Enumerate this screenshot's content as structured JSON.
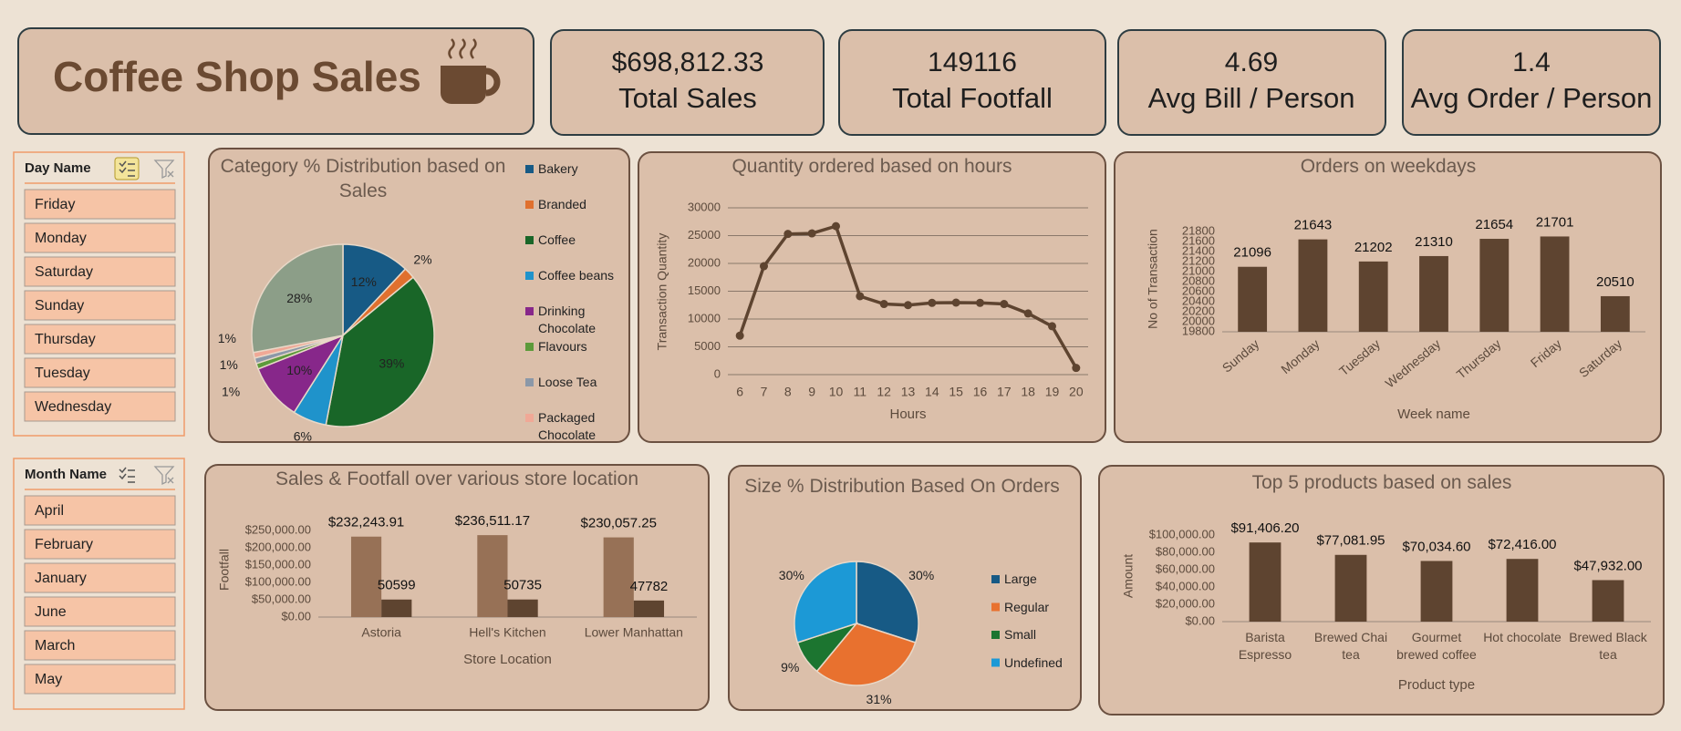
{
  "title": "Coffee Shop Sales",
  "kpis": [
    {
      "value": "$698,812.33",
      "label": "Total Sales"
    },
    {
      "value": "149116",
      "label": "Total Footfall"
    },
    {
      "value": "4.69",
      "label": "Avg Bill / Person"
    },
    {
      "value": "1.4",
      "label": "Avg Order / Person"
    }
  ],
  "slicers": [
    {
      "title": "Day Name",
      "items": [
        "Friday",
        "Monday",
        "Saturday",
        "Sunday",
        "Thursday",
        "Tuesday",
        "Wednesday"
      ]
    },
    {
      "title": "Month Name",
      "items": [
        "April",
        "February",
        "January",
        "June",
        "March",
        "May"
      ]
    }
  ],
  "chart_data": [
    {
      "type": "pie",
      "title": "Category % Distribution based on Sales",
      "categories": [
        "Bakery",
        "Branded",
        "Coffee",
        "Coffee beans",
        "Drinking Chocolate",
        "Flavours",
        "Loose Tea",
        "Packaged Chocolate",
        null
      ],
      "values": [
        12,
        2,
        39,
        6,
        10,
        1,
        1,
        1,
        28
      ],
      "value_labels": [
        "12%",
        "2%",
        "39%",
        "6%",
        "10%",
        "1%",
        "1%",
        "1%",
        "28%"
      ],
      "colors": [
        "#175a85",
        "#e0702e",
        "#196628",
        "#1f93cb",
        "#87278a",
        "#5c9a3a",
        "#8b98a8",
        "#f0a896",
        "#8c9e88"
      ]
    },
    {
      "type": "line",
      "title": "Quantity ordered based on hours",
      "x": [
        6,
        7,
        8,
        9,
        10,
        11,
        12,
        13,
        14,
        15,
        16,
        17,
        18,
        19,
        20
      ],
      "values": [
        7000,
        19500,
        25300,
        25400,
        26700,
        14100,
        12700,
        12500,
        12900,
        12950,
        12900,
        12700,
        11000,
        8700,
        1200
      ],
      "xlim": [
        5.5,
        20.5
      ],
      "xticks": [
        6,
        7,
        8,
        9,
        10,
        11,
        12,
        13,
        14,
        15,
        16,
        17,
        18,
        19,
        20
      ],
      "ylim": [
        0,
        30000
      ],
      "yticks": [
        0,
        5000,
        10000,
        15000,
        20000,
        25000,
        30000
      ],
      "grid": true,
      "xlabel": "Hours",
      "ylabel": "Transaction Quantity",
      "color": "#5e4430"
    },
    {
      "type": "bar",
      "title": "Orders on weekdays",
      "categories": [
        "Sunday",
        "Monday",
        "Tuesday",
        "Wednesday",
        "Thursday",
        "Friday",
        "Saturday"
      ],
      "values": [
        21096,
        21643,
        21202,
        21310,
        21654,
        21701,
        20510
      ],
      "ylim": [
        19800,
        21800
      ],
      "yticks": [
        19800,
        20000,
        20200,
        20400,
        20600,
        20800,
        21000,
        21200,
        21400,
        21600,
        21800
      ],
      "grid": false,
      "xlabel": "Week name",
      "ylabel": "No of Transaction",
      "color": "#5e4430"
    },
    {
      "type": "bar",
      "title": "Sales & Footfall over various store location",
      "categories": [
        "Astoria",
        "Hell's Kitchen",
        "Lower Manhattan"
      ],
      "series": [
        {
          "color": "#977156",
          "values": [
            232243.91,
            236511.17,
            230057.25
          ],
          "value_labels": [
            "$232,243.91",
            "$236,511.17",
            "$230,057.25"
          ]
        },
        {
          "color": "#5e4430",
          "values": [
            50599,
            50735,
            47782
          ]
        }
      ],
      "ylim": [
        0,
        250000
      ],
      "yticks": [
        {
          "value": 0,
          "label": "$0.00"
        },
        {
          "value": 50000,
          "label": "$50,000.00"
        },
        {
          "value": 100000,
          "label": "$100,000.00"
        },
        {
          "value": 150000,
          "label": "$150,000.00"
        },
        {
          "value": 200000,
          "label": "$200,000.00"
        },
        {
          "value": 250000,
          "label": "$250,000.00"
        }
      ],
      "grid": false,
      "xlabel": "Store Location",
      "ylabel": "Footfall"
    },
    {
      "type": "pie",
      "title": "Size % Distribution Based On Orders",
      "categories": [
        "Large",
        "Regular",
        "Small",
        "Undefined"
      ],
      "values": [
        30,
        31,
        9,
        30
      ],
      "value_labels": [
        "30%",
        "31%",
        "9%",
        "30%"
      ],
      "colors": [
        "#175a85",
        "#e8712f",
        "#1c7530",
        "#1c99d6"
      ]
    },
    {
      "type": "bar",
      "title": "Top 5 products based on sales",
      "categories": [
        "Barista Espresso",
        "Brewed Chai tea",
        "Gourmet brewed coffee",
        "Hot chocolate",
        "Brewed Black tea"
      ],
      "values": [
        91406.2,
        77081.95,
        70034.6,
        72416.0,
        47932.0
      ],
      "value_labels": [
        "$91,406.20",
        "$77,081.95",
        "$70,034.60",
        "$72,416.00",
        "$47,932.00"
      ],
      "ylim": [
        0,
        100000
      ],
      "yticks": [
        {
          "value": 0,
          "label": "$0.00"
        },
        {
          "value": 20000,
          "label": "$20,000.00"
        },
        {
          "value": 40000,
          "label": "$40,000.00"
        },
        {
          "value": 60000,
          "label": "$60,000.00"
        },
        {
          "value": 80000,
          "label": "$80,000.00"
        },
        {
          "value": 100000,
          "label": "$100,000.00"
        }
      ],
      "grid": false,
      "xlabel": "Product type",
      "ylabel": "Amount",
      "color": "#5e4430"
    }
  ]
}
